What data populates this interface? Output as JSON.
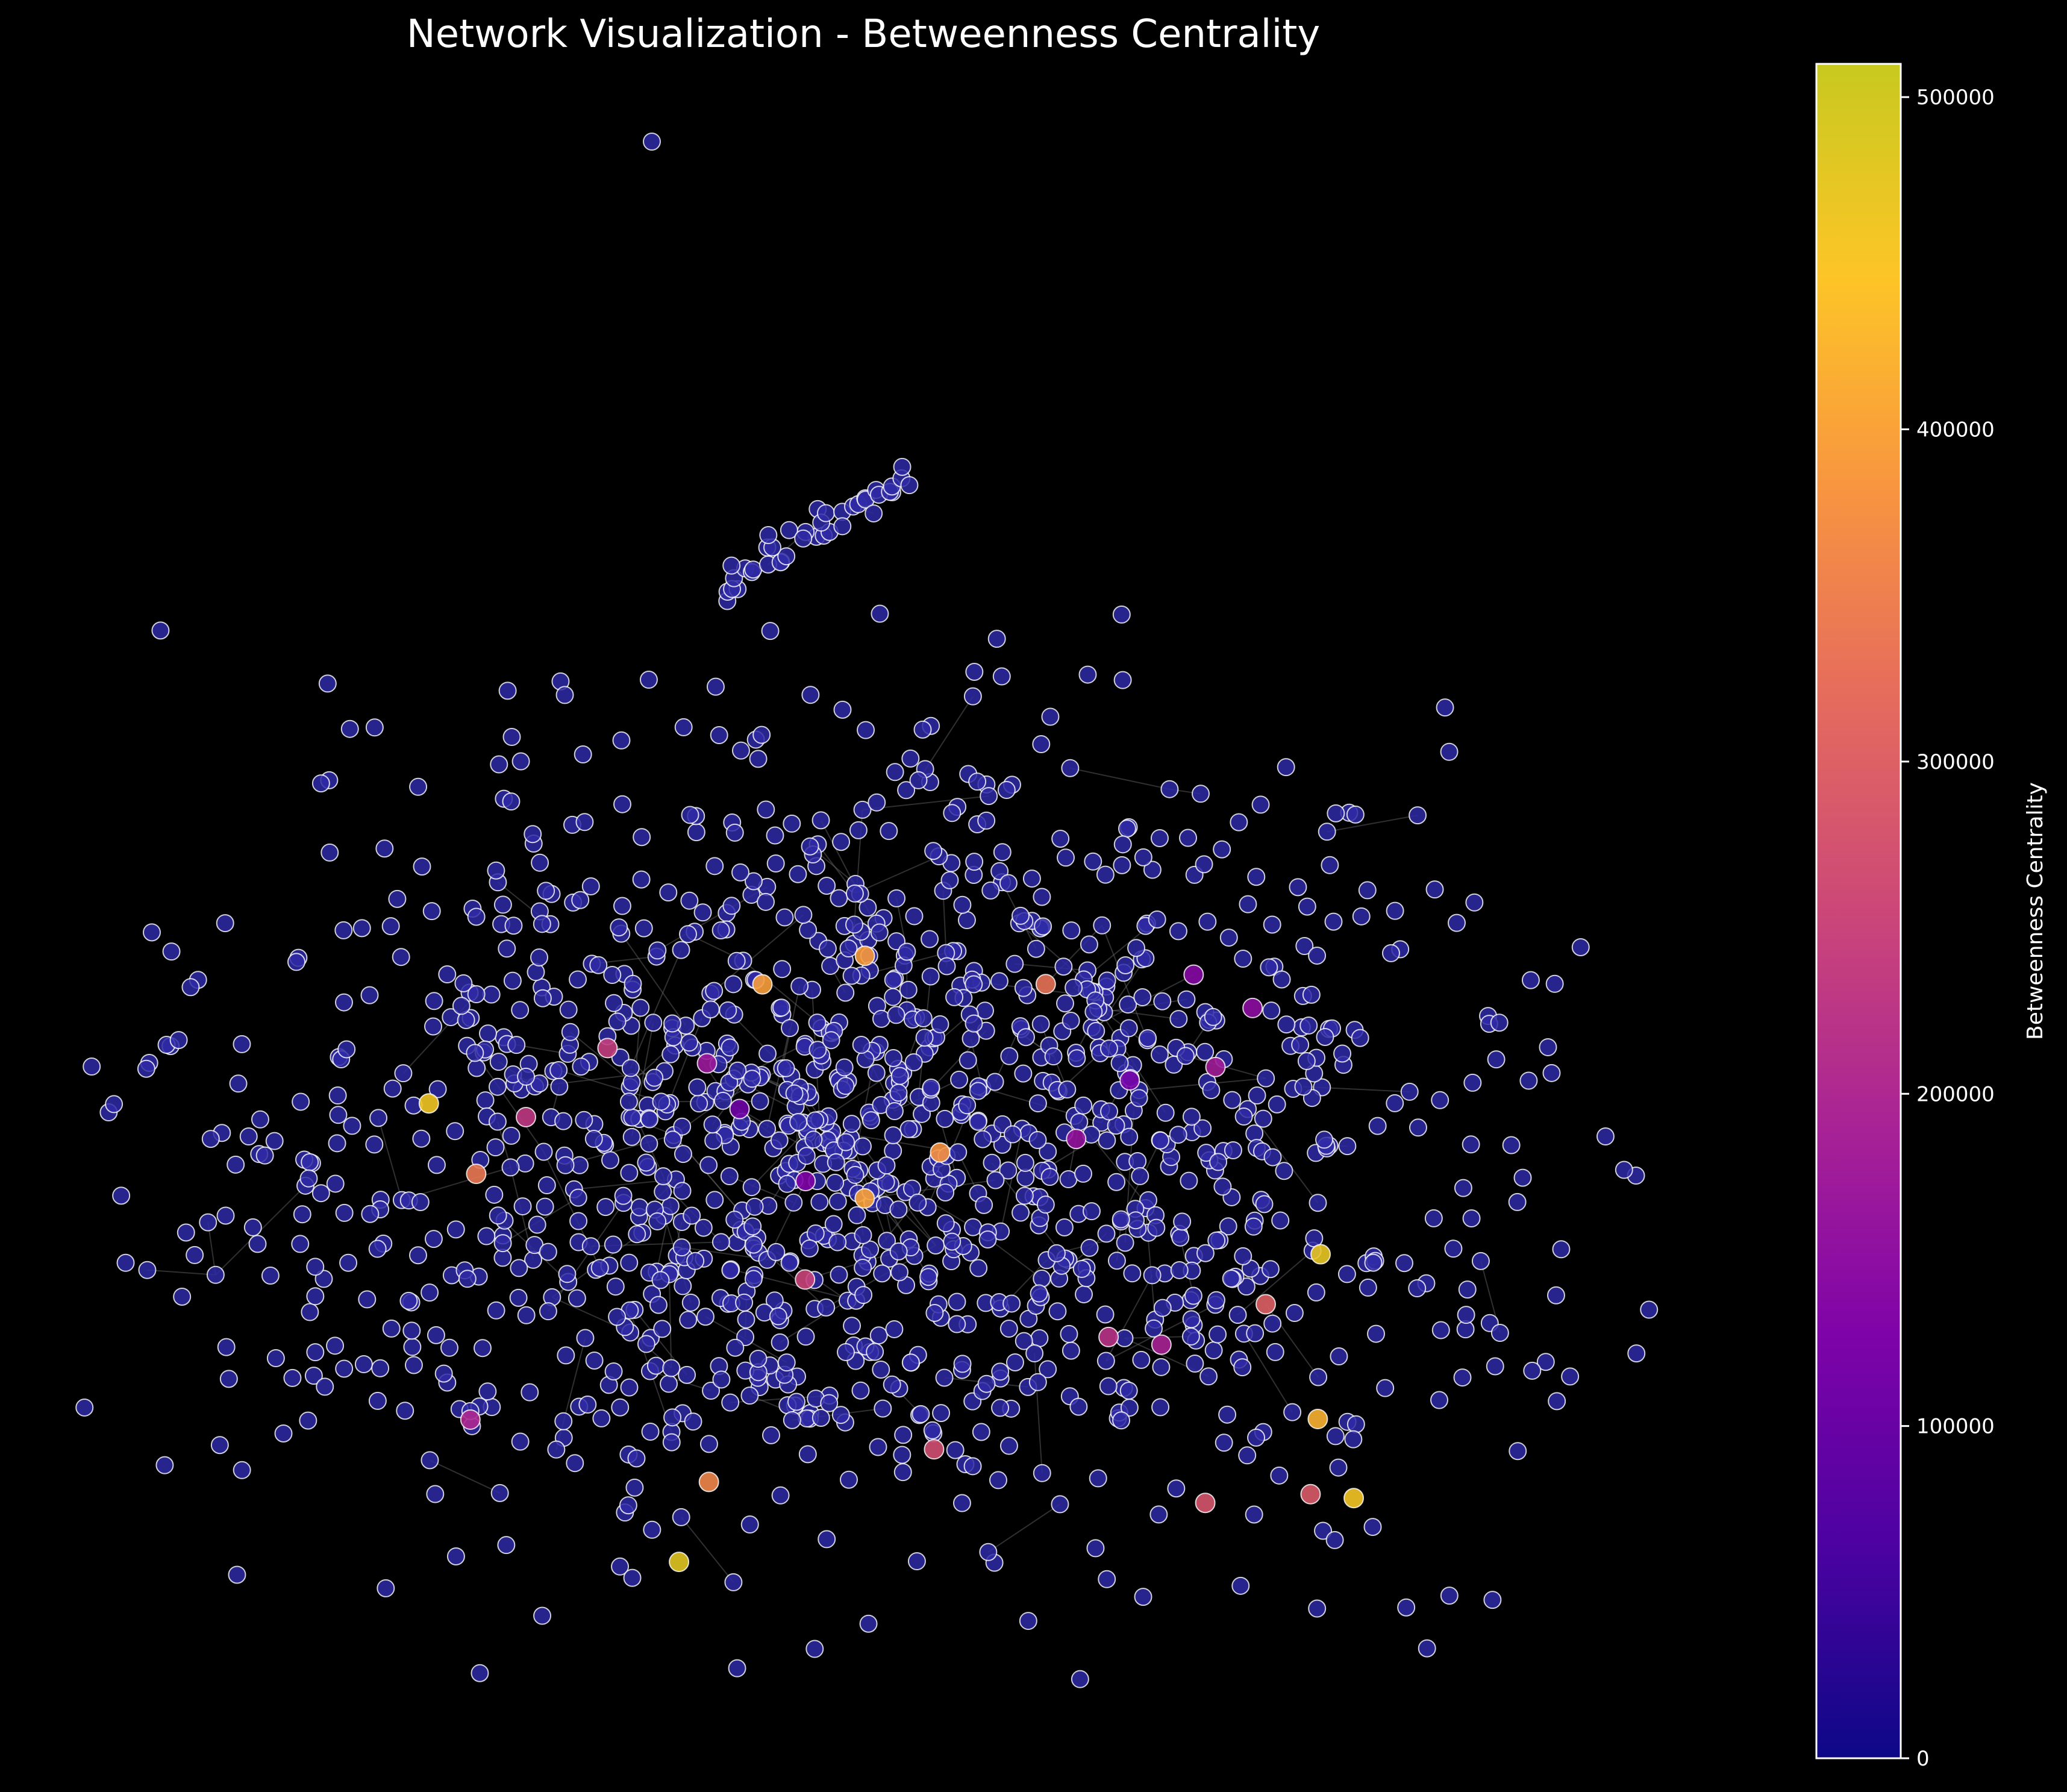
{
  "title": "Network Visualization - Betweenness Centrality",
  "colorbar": {
    "label": "Betweenness Centrality",
    "min": 0,
    "max": 510000,
    "ticks": [
      {
        "value": 0,
        "label": "0"
      },
      {
        "value": 100000,
        "label": "100000"
      },
      {
        "value": 200000,
        "label": "200000"
      },
      {
        "value": 300000,
        "label": "300000"
      },
      {
        "value": 400000,
        "label": "400000"
      },
      {
        "value": 500000,
        "label": "500000"
      }
    ],
    "colormap": "plasma"
  },
  "colors": {
    "background": "#000000",
    "text": "#ffffff",
    "node_stroke": "#ffffff",
    "edge": "#6b6b6b",
    "plasma_stops": [
      "#0d0887",
      "#4c02a1",
      "#7e03a8",
      "#a92395",
      "#cc4778",
      "#e56b5d",
      "#f89540",
      "#fdc527",
      "#c8c91f"
    ]
  },
  "network": {
    "layout": "scattered",
    "node_count_approx": 1400,
    "high_centrality_nodes": [
      {
        "id": "h1",
        "value": 480000
      },
      {
        "id": "h2",
        "value": 470000
      },
      {
        "id": "h3",
        "value": 460000
      },
      {
        "id": "h4",
        "value": 455000
      },
      {
        "id": "h5",
        "value": 420000
      },
      {
        "id": "h6",
        "value": 400000
      },
      {
        "id": "h7",
        "value": 395000
      },
      {
        "id": "h8",
        "value": 390000
      },
      {
        "id": "h9",
        "value": 380000
      },
      {
        "id": "h10",
        "value": 360000
      },
      {
        "id": "h11",
        "value": 340000
      },
      {
        "id": "h12",
        "value": 330000
      },
      {
        "id": "h13",
        "value": 300000
      },
      {
        "id": "h14",
        "value": 290000
      },
      {
        "id": "h15",
        "value": 280000
      },
      {
        "id": "h16",
        "value": 270000
      },
      {
        "id": "h17",
        "value": 250000
      },
      {
        "id": "h18",
        "value": 240000
      },
      {
        "id": "h19",
        "value": 230000
      },
      {
        "id": "h20",
        "value": 220000
      },
      {
        "id": "h21",
        "value": 200000
      },
      {
        "id": "h22",
        "value": 190000
      },
      {
        "id": "h23",
        "value": 180000
      },
      {
        "id": "h24",
        "value": 170000
      },
      {
        "id": "h25",
        "value": 160000
      },
      {
        "id": "h26",
        "value": 150000
      },
      {
        "id": "h27",
        "value": 140000
      },
      {
        "id": "h28",
        "value": 130000
      },
      {
        "id": "h29",
        "value": 120000
      },
      {
        "id": "h30",
        "value": 110000
      }
    ]
  }
}
